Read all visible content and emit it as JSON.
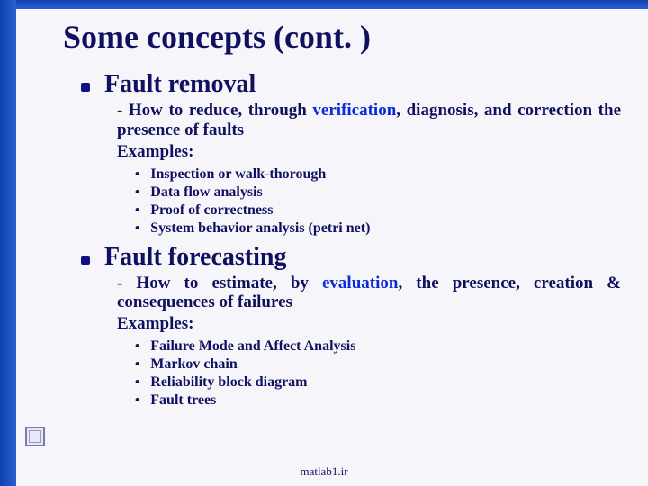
{
  "colors": {
    "text": "#101060",
    "keyword": "#0b2bd8",
    "border_gradient_from": "#1040b0",
    "border_gradient_to": "#2860d0",
    "background": "#f5f5fa"
  },
  "typography": {
    "family": "Times New Roman",
    "title_size_pt": 36,
    "h1_size_pt": 28,
    "desc_size_pt": 19,
    "example_size_pt": 16,
    "footer_size_pt": 13
  },
  "title": "Some concepts (cont. )",
  "sections": [
    {
      "heading": "Fault removal",
      "desc_pre": "- How to reduce, through ",
      "desc_keyword": "verification",
      "desc_post": ", diagnosis, and correction the presence of faults",
      "examples_label": "Examples:",
      "examples": [
        "Inspection or walk-thorough",
        "Data flow analysis",
        "Proof of correctness",
        "System behavior analysis (petri net)"
      ]
    },
    {
      "heading": "Fault forecasting",
      "desc_pre": "- How to estimate, by ",
      "desc_keyword": "evaluation",
      "desc_post": ", the presence, creation & consequences of failures",
      "examples_label": "Examples:",
      "examples": [
        "Failure Mode and Affect Analysis",
        "Markov chain",
        "Reliability block diagram",
        "Fault trees"
      ]
    }
  ],
  "footer": "matlab1.ir"
}
